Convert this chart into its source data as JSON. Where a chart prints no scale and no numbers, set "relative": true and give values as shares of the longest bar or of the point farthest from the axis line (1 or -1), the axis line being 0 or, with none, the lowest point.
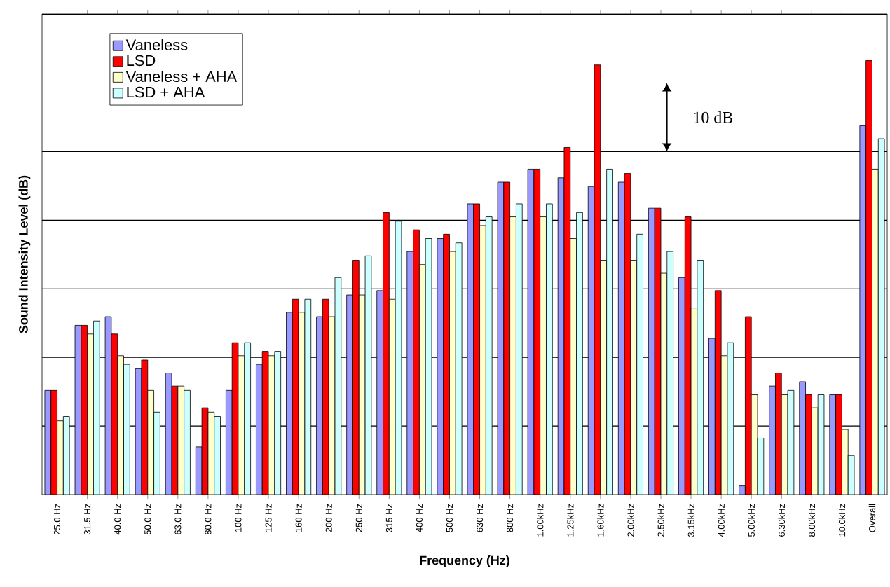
{
  "chart_data": {
    "type": "bar",
    "relative": true,
    "xlabel": "Frequency (Hz)",
    "ylabel": "Sound Intensity Level (dB)",
    "categories": [
      "25.0 Hz",
      "31.5 Hz",
      "40.0 Hz",
      "50.0 Hz",
      "63.0 Hz",
      "80.0 Hz",
      "100 Hz",
      "125 Hz",
      "160 Hz",
      "200 Hz",
      "250 Hz",
      "315 Hz",
      "400 Hz",
      "500 Hz",
      "630 Hz",
      "800 Hz",
      "1.00kHz",
      "1.25kHz",
      "1.60kHz",
      "2.00kHz",
      "2.50kHz",
      "3.15kHz",
      "4.00kHz",
      "5.00kHz",
      "6.30kHz",
      "8.00kHz",
      "10.0kHz",
      "Overall"
    ],
    "series": [
      {
        "name": "Vaneless",
        "color": "#9999ff",
        "values": [
          0.24,
          0.39,
          0.41,
          0.29,
          0.28,
          0.11,
          0.24,
          0.3,
          0.42,
          0.41,
          0.46,
          0.47,
          0.56,
          0.59,
          0.67,
          0.72,
          0.75,
          0.73,
          0.71,
          0.72,
          0.66,
          0.5,
          0.36,
          0.02,
          0.25,
          0.26,
          0.23,
          0.85
        ]
      },
      {
        "name": "LSD",
        "color": "#ff0000",
        "values": [
          0.24,
          0.39,
          0.37,
          0.31,
          0.25,
          0.2,
          0.35,
          0.33,
          0.45,
          0.45,
          0.54,
          0.65,
          0.61,
          0.6,
          0.67,
          0.72,
          0.75,
          0.8,
          0.99,
          0.74,
          0.66,
          0.64,
          0.47,
          0.41,
          0.28,
          0.23,
          0.23,
          1
        ]
      },
      {
        "name": "Vaneless + AHA",
        "color": "#ffffcc",
        "values": [
          0.17,
          0.37,
          0.32,
          0.24,
          0.25,
          0.19,
          0.32,
          0.32,
          0.42,
          0.41,
          0.46,
          0.45,
          0.53,
          0.56,
          0.62,
          0.64,
          0.64,
          0.59,
          0.54,
          0.54,
          0.51,
          0.43,
          0.32,
          0.23,
          0.23,
          0.2,
          0.15,
          0.75
        ]
      },
      {
        "name": "LSD + AHA",
        "color": "#ccffff",
        "values": [
          0.18,
          0.4,
          0.3,
          0.19,
          0.24,
          0.18,
          0.35,
          0.33,
          0.45,
          0.5,
          0.55,
          0.63,
          0.59,
          0.58,
          0.64,
          0.67,
          0.67,
          0.65,
          0.75,
          0.6,
          0.56,
          0.54,
          0.35,
          0.13,
          0.24,
          0.23,
          0.09,
          0.82
        ]
      }
    ],
    "grid": true,
    "legend": "top left",
    "annotations": [
      "10 dB"
    ]
  }
}
